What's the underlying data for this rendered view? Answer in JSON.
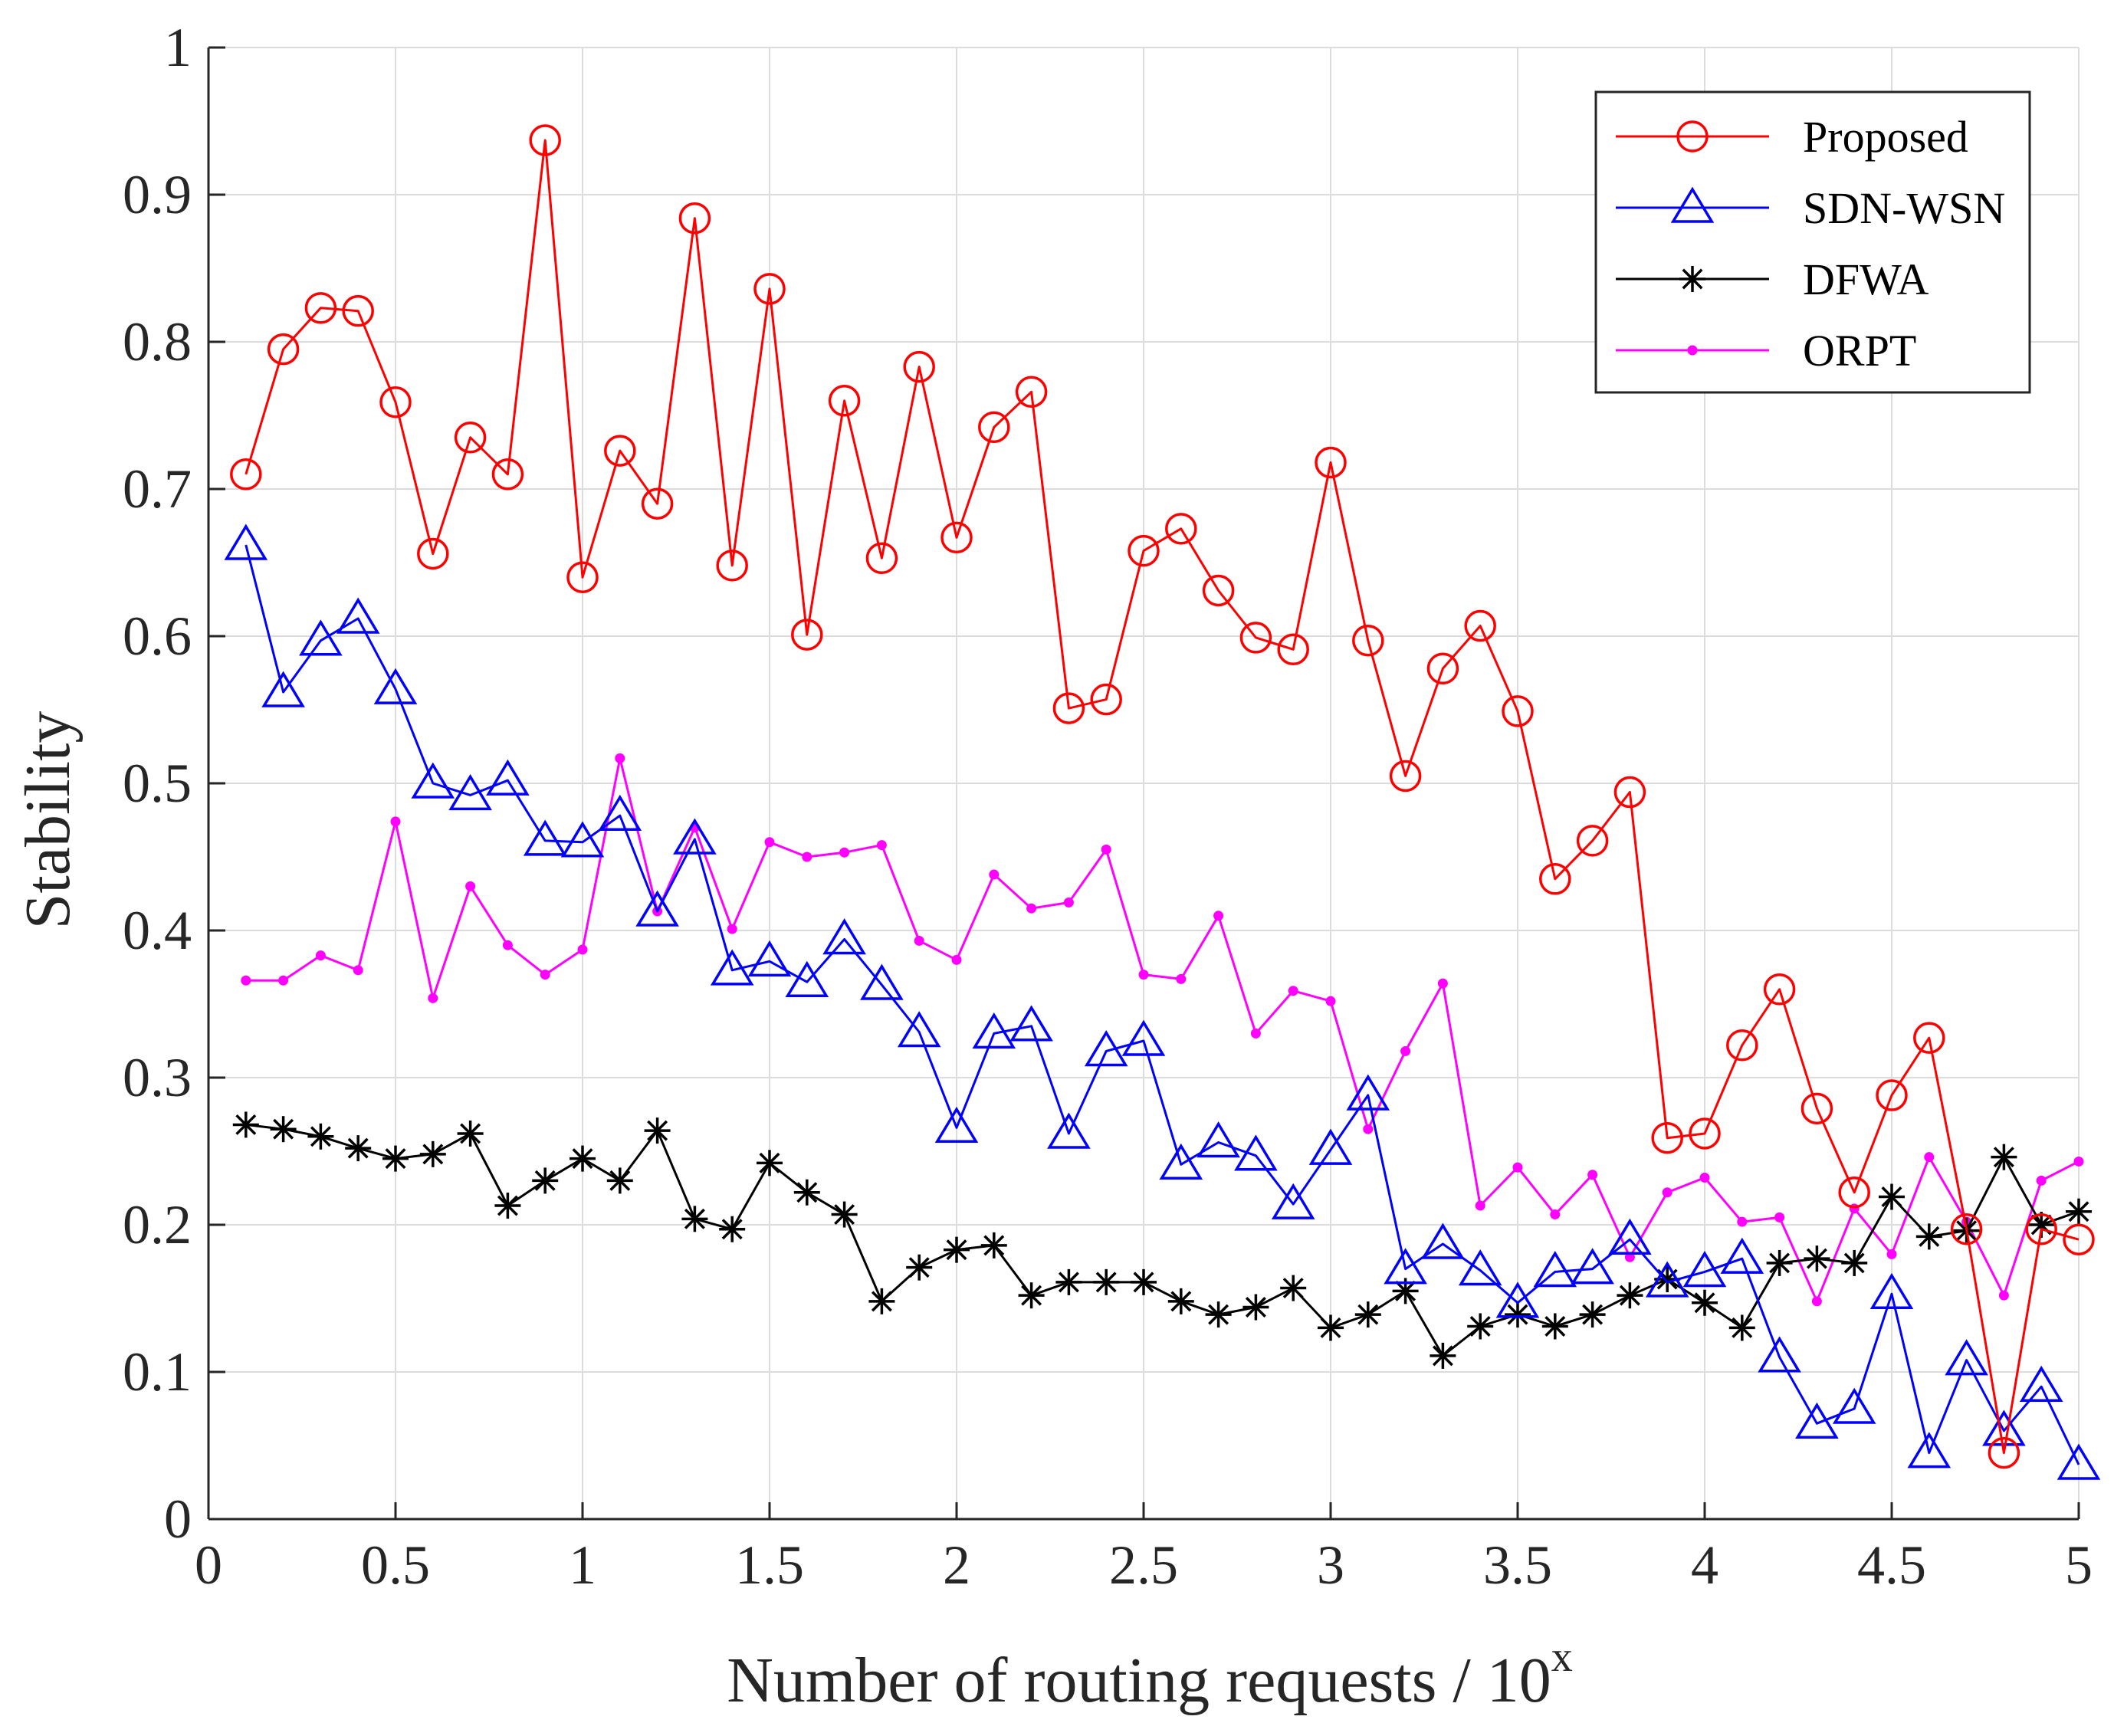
{
  "chart_data": {
    "type": "line",
    "title": "",
    "xlabel": "Number of routing requests / 10",
    "xlabel_superscript": "x",
    "ylabel": "Stability",
    "xlim": [
      0,
      5
    ],
    "ylim": [
      0,
      1
    ],
    "grid": true,
    "legend_position": "top-right",
    "x_ticks": [
      0,
      0.5,
      1,
      1.5,
      2,
      2.5,
      3,
      3.5,
      4,
      4.5,
      5
    ],
    "x_tick_labels": [
      "0",
      "0.5",
      "1",
      "1.5",
      "2",
      "2.5",
      "3",
      "3.5",
      "4",
      "4.5",
      "5"
    ],
    "y_ticks": [
      0,
      0.1,
      0.2,
      0.3,
      0.4,
      0.5,
      0.6,
      0.7,
      0.8,
      0.9,
      1
    ],
    "y_tick_labels": [
      "0",
      "0.1",
      "0.2",
      "0.3",
      "0.4",
      "0.5",
      "0.6",
      "0.7",
      "0.8",
      "0.9",
      "1"
    ],
    "x": [
      0.1,
      0.2,
      0.3,
      0.4,
      0.5,
      0.6,
      0.7,
      0.8,
      0.9,
      1.0,
      1.1,
      1.2,
      1.3,
      1.4,
      1.5,
      1.6,
      1.7,
      1.8,
      1.9,
      2.0,
      2.1,
      2.2,
      2.3,
      2.4,
      2.5,
      2.6,
      2.7,
      2.8,
      2.9,
      3.0,
      3.1,
      3.2,
      3.3,
      3.4,
      3.5,
      3.6,
      3.7,
      3.8,
      3.9,
      4.0,
      4.1,
      4.2,
      4.3,
      4.4,
      4.5,
      4.6,
      4.7,
      4.8,
      4.9,
      5.0
    ],
    "series": [
      {
        "name": "Proposed",
        "color": "#ff0000",
        "marker": "circle",
        "values": [
          0.71,
          0.795,
          0.823,
          0.821,
          0.759,
          0.656,
          0.735,
          0.71,
          0.937,
          0.64,
          0.726,
          0.69,
          0.884,
          0.648,
          0.836,
          0.601,
          0.76,
          0.653,
          0.783,
          0.667,
          0.742,
          0.766,
          0.551,
          0.557,
          0.658,
          0.673,
          0.631,
          0.599,
          0.591,
          0.718,
          0.597,
          0.505,
          0.578,
          0.607,
          0.549,
          0.435,
          0.461,
          0.494,
          0.259,
          0.262,
          0.322,
          0.36,
          0.279,
          0.222,
          0.288,
          0.327,
          0.197,
          0.045,
          0.197,
          0.19
        ]
      },
      {
        "name": "SDN-WSN",
        "color": "#0000ff",
        "marker": "triangle",
        "values": [
          0.662,
          0.562,
          0.597,
          0.612,
          0.564,
          0.5,
          0.492,
          0.502,
          0.461,
          0.46,
          0.478,
          0.413,
          0.462,
          0.373,
          0.379,
          0.365,
          0.394,
          0.363,
          0.331,
          0.266,
          0.33,
          0.335,
          0.262,
          0.318,
          0.325,
          0.241,
          0.256,
          0.247,
          0.214,
          0.251,
          0.288,
          0.17,
          0.187,
          0.169,
          0.147,
          0.168,
          0.17,
          0.19,
          0.161,
          0.168,
          0.177,
          0.11,
          0.065,
          0.075,
          0.153,
          0.045,
          0.108,
          0.06,
          0.09,
          0.037
        ]
      },
      {
        "name": "DFWA",
        "color": "#000000",
        "marker": "asterisk",
        "values": [
          0.268,
          0.265,
          0.26,
          0.252,
          0.245,
          0.248,
          0.262,
          0.213,
          0.23,
          0.245,
          0.23,
          0.264,
          0.204,
          0.197,
          0.242,
          0.222,
          0.207,
          0.148,
          0.171,
          0.183,
          0.186,
          0.152,
          0.161,
          0.161,
          0.161,
          0.148,
          0.139,
          0.144,
          0.157,
          0.13,
          0.139,
          0.155,
          0.111,
          0.131,
          0.139,
          0.131,
          0.139,
          0.152,
          0.163,
          0.147,
          0.13,
          0.174,
          0.177,
          0.174,
          0.219,
          0.192,
          0.196,
          0.246,
          0.2,
          0.209
        ]
      },
      {
        "name": "ORPT",
        "color": "#ff00ff",
        "marker": "dot",
        "values": [
          0.366,
          0.366,
          0.383,
          0.373,
          0.474,
          0.354,
          0.43,
          0.39,
          0.37,
          0.387,
          0.517,
          0.413,
          0.47,
          0.401,
          0.46,
          0.45,
          0.453,
          0.458,
          0.393,
          0.38,
          0.438,
          0.415,
          0.419,
          0.455,
          0.37,
          0.367,
          0.41,
          0.33,
          0.359,
          0.352,
          0.265,
          0.318,
          0.364,
          0.213,
          0.239,
          0.207,
          0.234,
          0.178,
          0.222,
          0.232,
          0.202,
          0.205,
          0.148,
          0.211,
          0.18,
          0.246,
          0.202,
          0.152,
          0.23,
          0.243
        ]
      }
    ]
  }
}
